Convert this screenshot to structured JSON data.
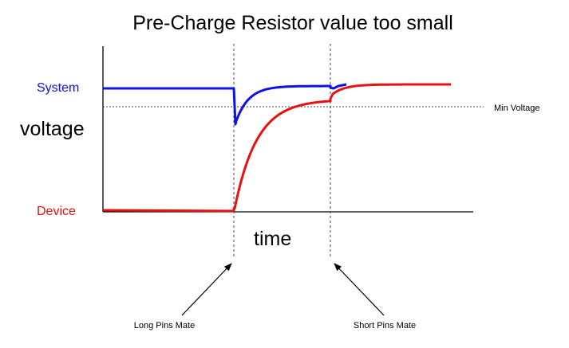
{
  "title": "Pre-Charge Resistor value too small",
  "y_axis_label": "voltage",
  "x_axis_label": "time",
  "series": {
    "system": {
      "label": "System",
      "color": "#1010e8"
    },
    "device": {
      "label": "Device",
      "color": "#e81010"
    }
  },
  "reference_line": {
    "label": "Min Voltage"
  },
  "events": [
    {
      "label": "Long Pins Mate"
    },
    {
      "label": "Short Pins Mate"
    }
  ],
  "colors": {
    "axis": "#000000",
    "guide": "#444444"
  }
}
